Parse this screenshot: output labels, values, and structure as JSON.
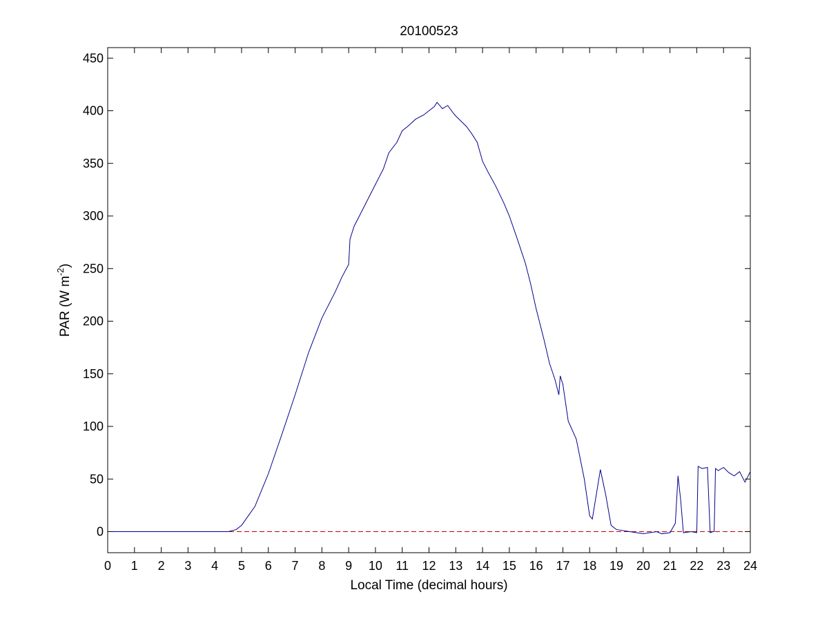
{
  "chart_data": {
    "type": "line",
    "title": "20100523",
    "xlabel": "Local Time (decimal hours)",
    "ylabel": {
      "main": "PAR (W m",
      "sup": "-2",
      "end": ")"
    },
    "xlim": [
      0,
      24
    ],
    "ylim": [
      -20,
      460
    ],
    "xticks": [
      0,
      1,
      2,
      3,
      4,
      5,
      6,
      7,
      8,
      9,
      10,
      11,
      12,
      13,
      14,
      15,
      16,
      17,
      18,
      19,
      20,
      21,
      22,
      23,
      24
    ],
    "yticks": [
      0,
      50,
      100,
      150,
      200,
      250,
      300,
      350,
      400,
      450
    ],
    "grid": false,
    "series": [
      {
        "color": "#00008b",
        "x": [
          0,
          4.5,
          4.8,
          5.0,
          5.5,
          6.0,
          6.5,
          7.0,
          7.5,
          8.0,
          8.5,
          8.75,
          9.0,
          9.05,
          9.2,
          9.5,
          9.8,
          10.0,
          10.3,
          10.5,
          10.8,
          11.0,
          11.2,
          11.5,
          11.8,
          12.0,
          12.2,
          12.3,
          12.5,
          12.7,
          12.9,
          13.0,
          13.2,
          13.4,
          13.6,
          13.8,
          14.0,
          14.2,
          14.5,
          14.8,
          15.0,
          15.3,
          15.6,
          15.8,
          16.0,
          16.3,
          16.5,
          16.7,
          16.85,
          16.9,
          17.0,
          17.2,
          17.5,
          17.8,
          18.0,
          18.1,
          18.4,
          18.6,
          18.8,
          19.0,
          19.5,
          20.0,
          20.5,
          20.7,
          21.0,
          21.2,
          21.3,
          21.4,
          21.5,
          21.8,
          22.0,
          22.05,
          22.2,
          22.4,
          22.5,
          22.6,
          22.65,
          22.7,
          22.8,
          23.0,
          23.2,
          23.4,
          23.6,
          23.8,
          24.0
        ],
        "y": [
          0,
          0,
          2,
          6,
          24,
          55,
          92,
          130,
          170,
          203,
          228,
          242,
          254,
          278,
          290,
          305,
          320,
          330,
          345,
          360,
          370,
          381,
          385,
          392,
          396,
          400,
          404,
          408,
          402,
          405,
          398,
          395,
          390,
          385,
          378,
          370,
          352,
          342,
          328,
          312,
          300,
          278,
          255,
          235,
          212,
          182,
          160,
          145,
          130,
          148,
          140,
          105,
          88,
          50,
          15,
          12,
          59,
          35,
          6,
          2,
          0,
          -2,
          0,
          -2,
          -1,
          8,
          53,
          30,
          -1,
          0,
          -1,
          62,
          60,
          61,
          -1,
          0,
          0,
          60,
          58,
          61,
          56,
          53,
          57,
          47,
          57
        ]
      }
    ],
    "reference_line": {
      "y": 0,
      "color": "#c00000",
      "style": "dashed"
    }
  }
}
